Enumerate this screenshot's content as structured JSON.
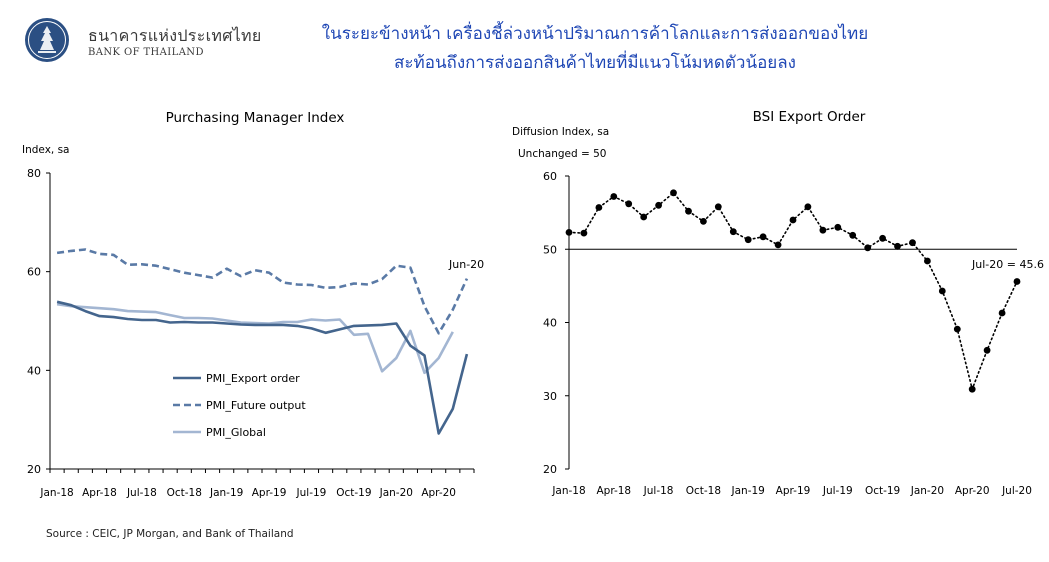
{
  "header": {
    "org_name_th": "ธนาคารแห่งประเทศไทย",
    "org_name_en": "BANK OF THAILAND",
    "title_line1": "ในระยะข้างหน้า เครื่องชี้ล่วงหน้าปริมาณการค้าโลกและการส่งออกของไทย",
    "title_line2": "สะท้อนถึงการส่งออกสินค้าไทยที่มีแนวโน้มหดตัวน้อยลง"
  },
  "source": "Source : CEIC, JP Morgan, and Bank of Thailand",
  "colors": {
    "title": "#1f47b5",
    "export_order": "#44658d",
    "future_output": "#5a7aa6",
    "global": "#a3b6d2",
    "bsi": "#000000"
  },
  "chart_data": [
    {
      "type": "line",
      "title": "Purchasing Manager Index",
      "ylabel": "Index, sa",
      "ylim": [
        20,
        80
      ],
      "yticks": [
        "20",
        "40",
        "60",
        "80"
      ],
      "x_tick_labels": [
        "Jan-18",
        "Apr-18",
        "Jul-18",
        "Oct-18",
        "Jan-19",
        "Apr-19",
        "Jul-19",
        "Oct-19",
        "Jan-20",
        "Apr-20"
      ],
      "x_tick_every": 3,
      "annotation": "Jun-20",
      "legend_position": "bottom-left",
      "series": [
        {
          "name": "PMI_Export order",
          "style": "solid",
          "values": [
            53.9,
            53.2,
            52.0,
            51.0,
            50.8,
            50.4,
            50.2,
            50.2,
            49.7,
            49.8,
            49.7,
            49.7,
            49.5,
            49.3,
            49.2,
            49.2,
            49.2,
            49.0,
            48.5,
            47.6,
            48.3,
            49.0,
            49.1,
            49.2,
            49.5,
            45.0,
            43.0,
            27.2,
            32.2,
            43.3
          ]
        },
        {
          "name": "PMI_Future output",
          "style": "dashed",
          "values": [
            63.8,
            64.2,
            64.5,
            63.6,
            63.4,
            61.4,
            61.5,
            61.2,
            60.5,
            59.8,
            59.3,
            58.8,
            60.6,
            59.1,
            60.3,
            59.8,
            57.8,
            57.4,
            57.3,
            56.7,
            56.9,
            57.6,
            57.4,
            58.5,
            61.2,
            60.8,
            53.0,
            47.5,
            52.3,
            58.6
          ]
        },
        {
          "name": "PMI_Global",
          "style": "solid",
          "values": [
            53.4,
            53.0,
            52.8,
            52.6,
            52.4,
            52.0,
            51.9,
            51.8,
            51.2,
            50.6,
            50.6,
            50.5,
            50.1,
            49.7,
            49.6,
            49.5,
            49.8,
            49.8,
            50.3,
            50.1,
            50.3,
            47.2,
            47.4,
            39.8,
            42.5,
            48.0,
            39.5,
            42.5,
            47.8
          ]
        }
      ]
    },
    {
      "type": "line",
      "title": "BSI Export Order",
      "ylabel": "Diffusion Index, sa",
      "subtitle": "Unchanged = 50",
      "ylim": [
        20,
        60
      ],
      "yticks": [
        "20",
        "30",
        "40",
        "50",
        "60"
      ],
      "x_tick_labels": [
        "Jan-18",
        "Apr-18",
        "Jul-18",
        "Oct-18",
        "Jan-19",
        "Apr-19",
        "Jul-19",
        "Oct-19",
        "Jan-20",
        "Apr-20",
        "Jul-20"
      ],
      "x_tick_every": 3,
      "annotation": "Jul-20 = 45.6",
      "baseline": 50,
      "series": [
        {
          "name": "BSI Export Order",
          "style": "dotted-markers",
          "values": [
            52.3,
            52.2,
            55.7,
            57.2,
            56.2,
            54.4,
            56.0,
            57.7,
            55.2,
            53.8,
            55.8,
            52.4,
            51.3,
            51.7,
            50.6,
            54.0,
            55.8,
            52.6,
            53.0,
            51.9,
            50.2,
            51.5,
            50.4,
            50.9,
            48.4,
            44.3,
            39.1,
            30.9,
            36.2,
            41.3,
            45.6
          ]
        }
      ]
    }
  ]
}
